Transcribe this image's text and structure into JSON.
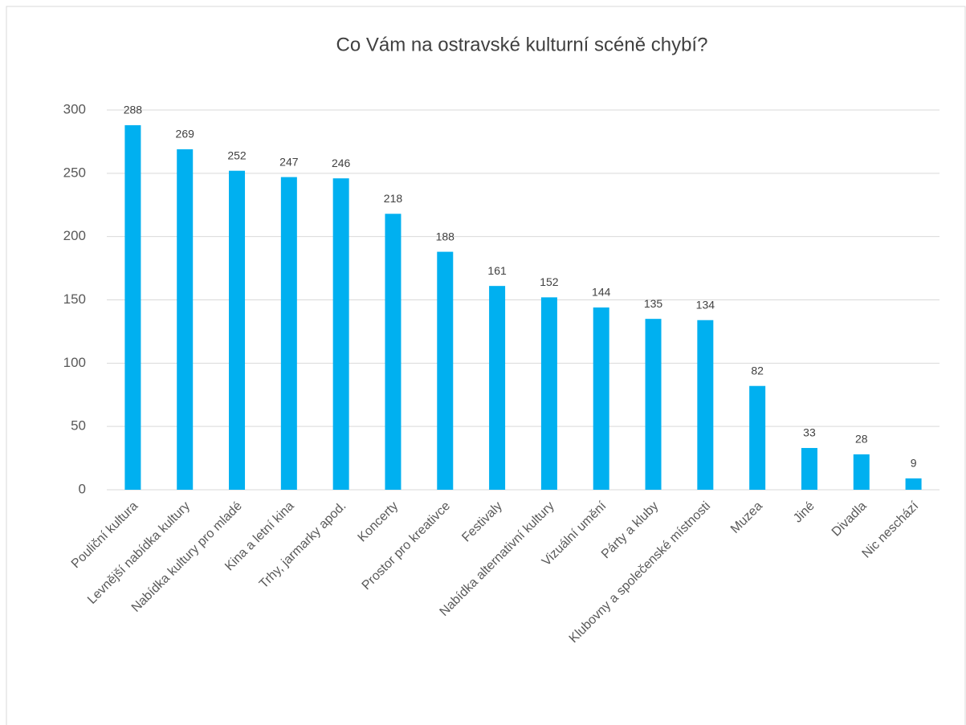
{
  "chart_data": {
    "type": "bar",
    "title": "Co Vám na ostravské kulturní scéně chybí?",
    "categories": [
      "Pouliční kultura",
      "Levnější nabídka kultury",
      "Nabídka kultury pro mladé",
      "Kina a letní kina",
      "Trhy, jarmarky apod.",
      "Koncerty",
      "Prostor pro kreativce",
      "Festivaly",
      "Nabídka alternativní kultury",
      "Vizuální umění",
      "Párty a kluby",
      "Klubovny a společenské místnosti",
      "Muzea",
      "Jiné",
      "Divadla",
      "Nic neschází"
    ],
    "values": [
      288,
      269,
      252,
      247,
      246,
      218,
      188,
      161,
      152,
      144,
      135,
      134,
      82,
      33,
      28,
      9
    ],
    "color": "#00b0f0",
    "ylim": [
      0,
      300
    ],
    "yticks": [
      0,
      50,
      100,
      150,
      200,
      250,
      300
    ],
    "grid": true
  }
}
